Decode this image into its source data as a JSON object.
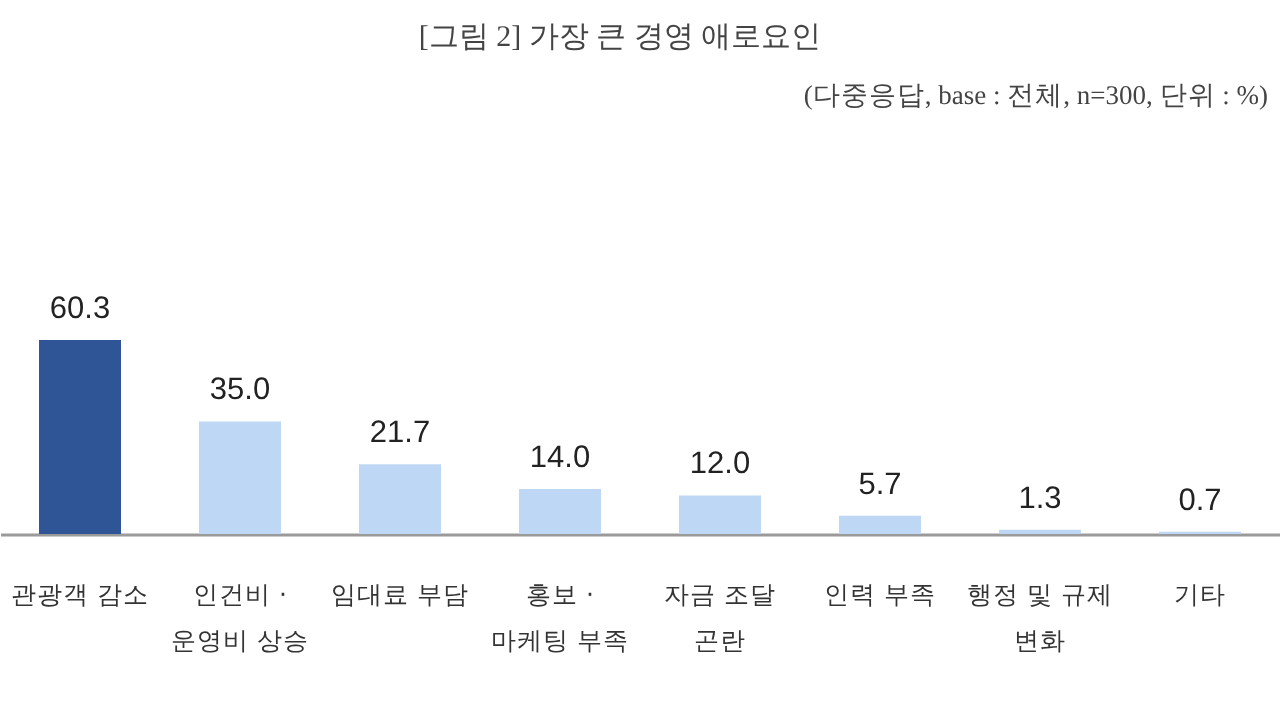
{
  "chart_data": {
    "type": "bar",
    "title": "[그림 2] 가장 큰 경영 애로요인",
    "subtitle": "(다중응답, base : 전체, n=300, 단위 : %)",
    "categories": [
      "관광객 감소",
      "인건비 ·\n운영비 상승",
      "임대료 부담",
      "홍보 ·\n마케팅 부족",
      "자금 조달\n곤란",
      "인력 부족",
      "행정 및 규제\n변화",
      "기타"
    ],
    "values": [
      60.3,
      35.0,
      21.7,
      14.0,
      12.0,
      5.7,
      1.3,
      0.7
    ],
    "colors": [
      "#2f5597",
      "#bdd7f4",
      "#bdd7f4",
      "#bdd7f4",
      "#bdd7f4",
      "#bdd7f4",
      "#bdd7f4",
      "#bdd7f4"
    ],
    "value_labels": [
      "60.3",
      "35.0",
      "21.7",
      "14.0",
      "12.0",
      "5.7",
      "1.3",
      "0.7"
    ]
  }
}
